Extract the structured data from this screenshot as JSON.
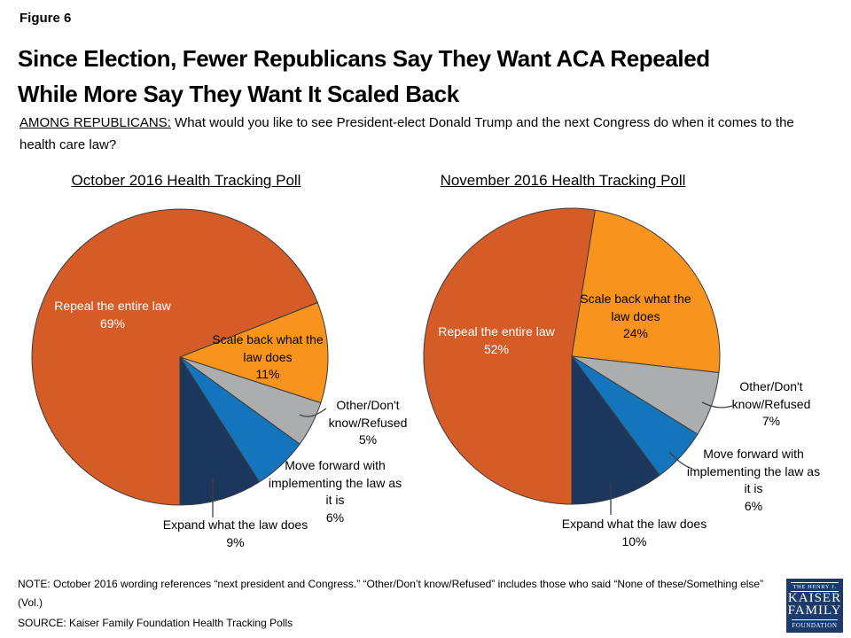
{
  "header": {
    "figure_label": "Figure 6",
    "title_line1": "Since Election, Fewer Republicans Say They Want ACA Repealed",
    "title_line2": "While More Say They Want It Scaled Back",
    "subtitle_lead": "AMONG REPUBLICANS:",
    "subtitle_text": "What would you like to see President-elect Donald Trump and the next Congress do when it comes to the health care law?"
  },
  "footer": {
    "note": "NOTE: October 2016  wording references “next president and Congress.” “Other/Don’t know/Refused” includes those who said “None of these/Something else” (Vol.)",
    "source": "SOURCE: Kaiser Family Foundation Health Tracking Polls",
    "logo": {
      "line1": "THE HENRY J.",
      "line2": "KAISER",
      "line3": "FAMILY",
      "line4": "FOUNDATION",
      "bg_color": "#1C3A6A"
    }
  },
  "chart_data": [
    {
      "type": "pie",
      "title": "October 2016 Health Tracking Poll",
      "start_angle_deg": 180,
      "direction": "clockwise",
      "stroke_color": "#3b3b3b",
      "slices": [
        {
          "label": "Repeal the entire law",
          "value_pct": 69,
          "color": "#D65C27",
          "label_color": "#FFFFFF"
        },
        {
          "label": "Scale back what the law does",
          "value_pct": 11,
          "color": "#F8941E",
          "label_color": "#000000"
        },
        {
          "label": "Other/Don't know/Refused",
          "value_pct": 5,
          "color": "#ABADAF",
          "label_color": "#000000"
        },
        {
          "label": "Move forward with implementing the law as it is",
          "value_pct": 6,
          "color": "#1474BC",
          "label_color": "#000000"
        },
        {
          "label": "Expand what the law does",
          "value_pct": 9,
          "color": "#1B375E",
          "label_color": "#000000"
        }
      ]
    },
    {
      "type": "pie",
      "title": "November 2016 Health Tracking Poll",
      "start_angle_deg": 180,
      "direction": "clockwise",
      "stroke_color": "#3b3b3b",
      "slices": [
        {
          "label": "Repeal the entire law",
          "value_pct": 52,
          "color": "#D65C27",
          "label_color": "#FFFFFF"
        },
        {
          "label": "Scale back what the law does",
          "value_pct": 24,
          "color": "#F8941E",
          "label_color": "#000000"
        },
        {
          "label": "Other/Don't know/Refused",
          "value_pct": 7,
          "color": "#ABADAF",
          "label_color": "#000000"
        },
        {
          "label": "Move forward with implementing the law as it is",
          "value_pct": 6,
          "color": "#1474BC",
          "label_color": "#000000"
        },
        {
          "label": "Expand what the law does",
          "value_pct": 10,
          "color": "#1B375E",
          "label_color": "#000000"
        }
      ]
    }
  ]
}
